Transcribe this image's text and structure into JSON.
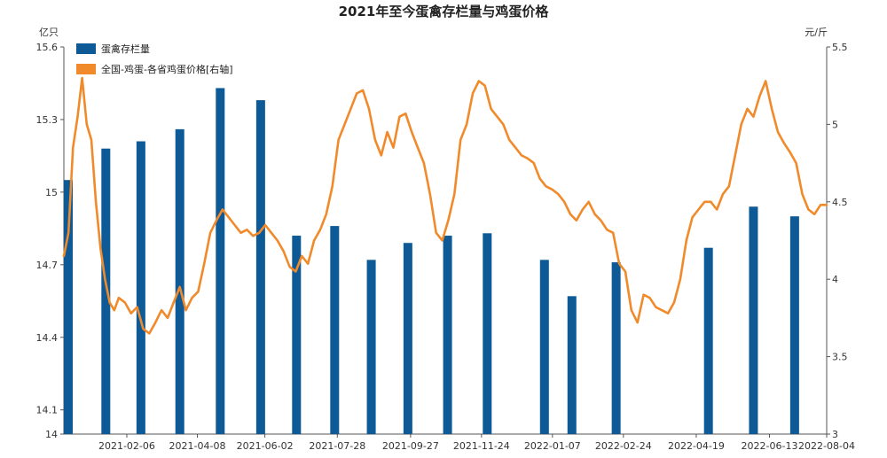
{
  "chart_data": {
    "type": "bar+line",
    "title": "2021年至今蛋禽存栏量与鸡蛋价格",
    "y_left_unit": "亿只",
    "y_right_unit": "元/斤",
    "y_left_ticks": [
      "15.6",
      "15.3",
      "15",
      "14.7",
      "14.4",
      "14.1",
      "14"
    ],
    "y_left_tick_values": [
      15.6,
      15.3,
      15.0,
      14.7,
      14.4,
      14.1,
      14.0
    ],
    "y_right_ticks": [
      "5.5",
      "5",
      "4.5",
      "4",
      "3.5",
      "3"
    ],
    "y_right_tick_values": [
      5.5,
      5.0,
      4.5,
      4.0,
      3.5,
      3.0
    ],
    "ylim_left": [
      14,
      15.6
    ],
    "ylim_right": [
      3,
      5.5
    ],
    "x_tick_labels": [
      "2021-02-06",
      "2021-04-08",
      "2021-06-02",
      "2021-07-28",
      "2021-09-27",
      "2021-11-24",
      "2022-01-07",
      "2022-02-24",
      "2022-04-19",
      "2022-06-13",
      "2022-08-04"
    ],
    "x_tick_positions": [
      0.0825,
      0.175,
      0.2635,
      0.3585,
      0.4545,
      0.5475,
      0.6405,
      0.7335,
      0.829,
      0.925,
      1.0
    ],
    "legend": {
      "position": "top-left"
    },
    "series": [
      {
        "name": "蛋禽存栏量",
        "type": "bar",
        "axis": "left",
        "color": "#0d5a96",
        "x": [
          0.0,
          0.055,
          0.101,
          0.152,
          0.205,
          0.258,
          0.305,
          0.355,
          0.403,
          0.451,
          0.503,
          0.555,
          0.63,
          0.666,
          0.724,
          0.845,
          0.904,
          0.958
        ],
        "values": [
          15.05,
          15.18,
          15.21,
          15.26,
          15.43,
          15.38,
          14.82,
          14.86,
          14.72,
          14.79,
          14.82,
          14.83,
          14.72,
          14.57,
          14.71,
          14.77,
          14.94,
          14.9
        ]
      },
      {
        "name": "全国-鸡蛋-各省鸡蛋价格[右轴]",
        "type": "line",
        "axis": "right",
        "color": "#f08a2a",
        "x": [
          0.0,
          0.006,
          0.012,
          0.018,
          0.024,
          0.03,
          0.036,
          0.042,
          0.048,
          0.054,
          0.06,
          0.066,
          0.072,
          0.08,
          0.088,
          0.096,
          0.104,
          0.112,
          0.12,
          0.128,
          0.136,
          0.144,
          0.152,
          0.16,
          0.168,
          0.176,
          0.184,
          0.192,
          0.2,
          0.208,
          0.216,
          0.224,
          0.232,
          0.24,
          0.248,
          0.256,
          0.264,
          0.272,
          0.28,
          0.288,
          0.296,
          0.304,
          0.312,
          0.32,
          0.328,
          0.336,
          0.344,
          0.352,
          0.36,
          0.368,
          0.376,
          0.384,
          0.392,
          0.4,
          0.408,
          0.416,
          0.424,
          0.432,
          0.44,
          0.448,
          0.456,
          0.464,
          0.472,
          0.48,
          0.488,
          0.496,
          0.504,
          0.512,
          0.52,
          0.528,
          0.536,
          0.544,
          0.552,
          0.56,
          0.568,
          0.576,
          0.584,
          0.592,
          0.6,
          0.608,
          0.616,
          0.624,
          0.632,
          0.64,
          0.648,
          0.656,
          0.664,
          0.672,
          0.68,
          0.688,
          0.696,
          0.704,
          0.712,
          0.72,
          0.728,
          0.736,
          0.744,
          0.752,
          0.76,
          0.768,
          0.776,
          0.784,
          0.792,
          0.8,
          0.808,
          0.816,
          0.824,
          0.832,
          0.84,
          0.848,
          0.856,
          0.864,
          0.872,
          0.88,
          0.888,
          0.896,
          0.904,
          0.912,
          0.92,
          0.928,
          0.936,
          0.944,
          0.952,
          0.96,
          0.968,
          0.976,
          0.984,
          0.992,
          1.0
        ],
        "values": [
          4.15,
          4.3,
          4.85,
          5.05,
          5.3,
          5.0,
          4.9,
          4.5,
          4.2,
          4.0,
          3.85,
          3.8,
          3.88,
          3.85,
          3.78,
          3.82,
          3.68,
          3.65,
          3.72,
          3.8,
          3.75,
          3.85,
          3.95,
          3.8,
          3.88,
          3.92,
          4.1,
          4.3,
          4.38,
          4.45,
          4.4,
          4.35,
          4.3,
          4.32,
          4.28,
          4.3,
          4.35,
          4.3,
          4.25,
          4.18,
          4.08,
          4.05,
          4.15,
          4.1,
          4.25,
          4.32,
          4.42,
          4.6,
          4.9,
          5.0,
          5.1,
          5.2,
          5.22,
          5.1,
          4.9,
          4.8,
          4.95,
          4.85,
          5.05,
          5.07,
          4.95,
          4.85,
          4.75,
          4.55,
          4.3,
          4.25,
          4.38,
          4.55,
          4.9,
          5.0,
          5.2,
          5.28,
          5.25,
          5.1,
          5.05,
          5.0,
          4.9,
          4.85,
          4.8,
          4.78,
          4.75,
          4.65,
          4.6,
          4.58,
          4.55,
          4.5,
          4.42,
          4.38,
          4.45,
          4.5,
          4.42,
          4.38,
          4.32,
          4.3,
          4.1,
          4.05,
          3.8,
          3.72,
          3.9,
          3.88,
          3.82,
          3.8,
          3.78,
          3.85,
          4.0,
          4.25,
          4.4,
          4.45,
          4.5,
          4.5,
          4.45,
          4.55,
          4.6,
          4.8,
          5.0,
          5.1,
          5.05,
          5.18,
          5.28,
          5.1,
          4.95,
          4.88,
          4.82,
          4.75,
          4.55,
          4.45,
          4.42,
          4.48,
          4.48
        ]
      }
    ]
  }
}
